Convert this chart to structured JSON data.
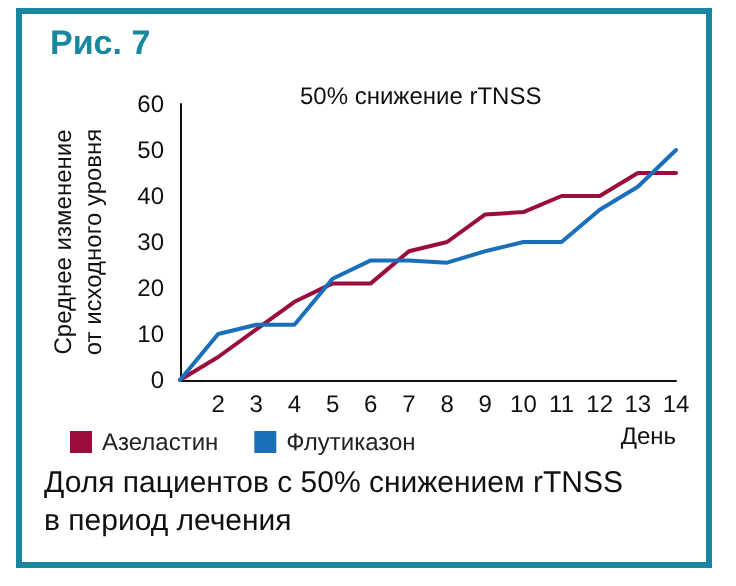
{
  "chart_data": {
    "type": "line",
    "title": "Рис. 7",
    "subtitle": "50% снижение rTNSS",
    "ylabel": "Среднее изменение\nот исходного уровня",
    "xlabel": "День",
    "x": [
      1,
      2,
      3,
      4,
      5,
      6,
      7,
      8,
      9,
      10,
      11,
      12,
      13,
      14
    ],
    "series": [
      {
        "name": "Азеластин",
        "color": "#9b0d3f",
        "values": [
          0,
          5,
          11,
          17,
          21,
          21,
          28,
          30,
          36,
          36.5,
          40,
          40,
          45,
          45
        ]
      },
      {
        "name": "Флутиказон",
        "color": "#1a6fba",
        "values": [
          0,
          10,
          12,
          12,
          22,
          26,
          26,
          25.5,
          28,
          30,
          30,
          37,
          42,
          50
        ]
      }
    ],
    "xlim": [
      1,
      14
    ],
    "xticks": [
      {
        "value": 1,
        "label": null
      },
      2,
      3,
      4,
      5,
      6,
      7,
      8,
      9,
      10,
      11,
      12,
      13,
      14
    ],
    "ylim": [
      0,
      60
    ],
    "yticks": [
      0,
      10,
      20,
      30,
      40,
      50,
      60
    ],
    "grid": false,
    "legend": "bottom left",
    "marker": "none",
    "line_style": "solid",
    "annotations": [
      "Доля пациентов с 50% снижением rTNSS\nв период лечения"
    ]
  }
}
